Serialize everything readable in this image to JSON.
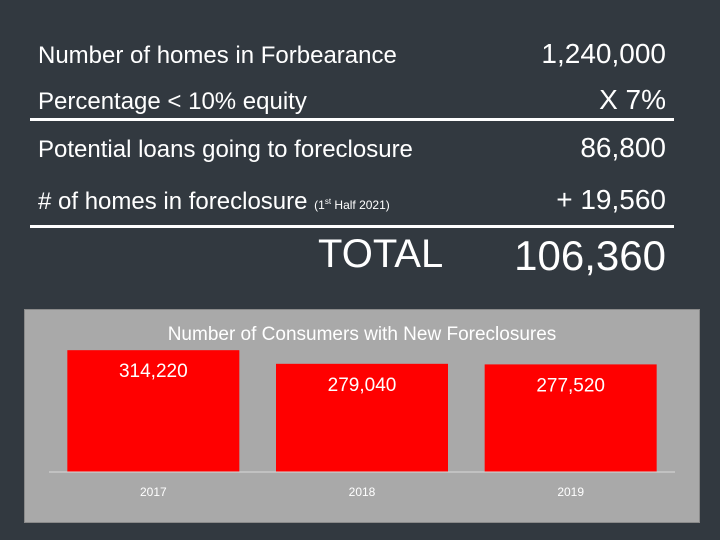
{
  "summary": {
    "rows": [
      {
        "label": "Number of homes in Forbearance",
        "value": "1,240,000"
      },
      {
        "label": "Percentage < 10% equity",
        "value": "X 7%"
      },
      {
        "label": "Potential loans going to foreclosure",
        "value": "86,800"
      },
      {
        "label": "# of homes in foreclosure",
        "note_pre": "(1",
        "note_sup": "st",
        "note_post": " Half 2021)",
        "value": "+ 19,560"
      }
    ],
    "total_label": "TOTAL",
    "total_value": "106,360"
  },
  "chart_data": {
    "type": "bar",
    "title": "Number of Consumers with New Foreclosures",
    "categories": [
      "2017",
      "2018",
      "2019"
    ],
    "values": [
      314220,
      279040,
      277520
    ],
    "value_labels": [
      "314,220",
      "279,040",
      "277,520"
    ],
    "bar_color": "#ff0000",
    "ylim": [
      0,
      325000
    ],
    "grid": false,
    "legend": "none"
  }
}
